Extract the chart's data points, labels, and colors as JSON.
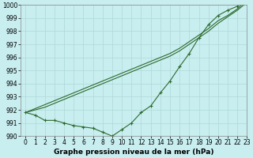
{
  "x": [
    0,
    1,
    2,
    3,
    4,
    5,
    6,
    7,
    8,
    9,
    10,
    11,
    12,
    13,
    14,
    15,
    16,
    17,
    18,
    19,
    20,
    21,
    22,
    23
  ],
  "line_straight1": [
    991.8,
    992.0,
    992.2,
    992.5,
    992.8,
    993.1,
    993.4,
    993.7,
    994.0,
    994.3,
    994.6,
    994.9,
    995.2,
    995.5,
    995.8,
    996.1,
    996.5,
    997.0,
    997.5,
    998.0,
    998.6,
    999.1,
    999.6,
    1000.2
  ],
  "line_straight2": [
    991.8,
    992.1,
    992.4,
    992.7,
    993.0,
    993.3,
    993.6,
    993.9,
    994.2,
    994.5,
    994.8,
    995.1,
    995.4,
    995.7,
    996.0,
    996.3,
    996.7,
    997.2,
    997.7,
    998.2,
    998.8,
    999.2,
    999.7,
    1000.4
  ],
  "line_curved": [
    991.8,
    991.6,
    991.2,
    991.2,
    991.0,
    990.8,
    990.7,
    990.6,
    990.3,
    990.0,
    990.5,
    991.0,
    991.8,
    992.3,
    993.3,
    994.2,
    995.3,
    996.3,
    997.5,
    998.5,
    999.2,
    999.6,
    999.9,
    1000.5
  ],
  "ylim": [
    990,
    1000
  ],
  "xlim": [
    -0.5,
    23
  ],
  "yticks": [
    990,
    991,
    992,
    993,
    994,
    995,
    996,
    997,
    998,
    999,
    1000
  ],
  "xticks": [
    0,
    1,
    2,
    3,
    4,
    5,
    6,
    7,
    8,
    9,
    10,
    11,
    12,
    13,
    14,
    15,
    16,
    17,
    18,
    19,
    20,
    21,
    22,
    23
  ],
  "xlabel": "Graphe pression niveau de la mer (hPa)",
  "line_color": "#2d6a2d",
  "bg_color": "#c8eef0",
  "grid_color": "#b0d8d8",
  "tick_label_fontsize": 5.5,
  "xlabel_fontsize": 6.5
}
